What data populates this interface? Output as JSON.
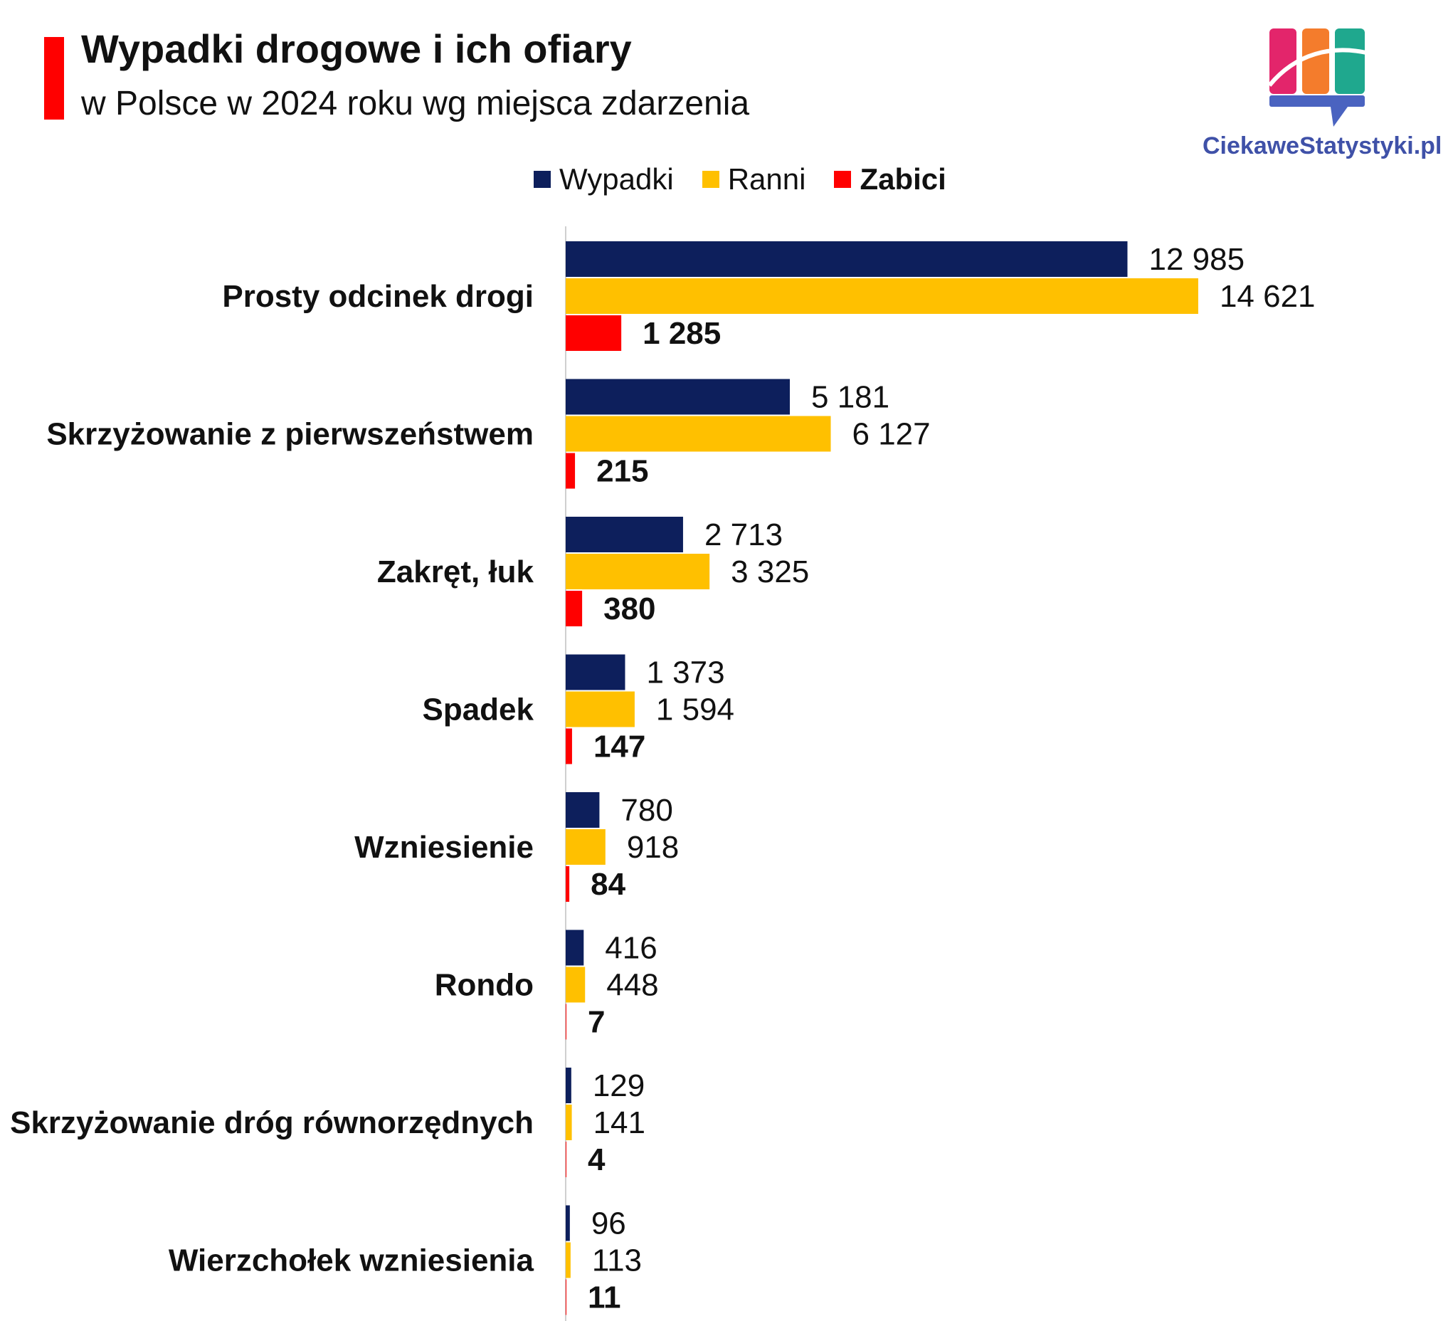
{
  "header": {
    "title": "Wypadki drogowe i ich ofiary",
    "subtitle": "w Polsce w 2024 roku wg miejsca zdarzenia",
    "accent_color": "#ff0000"
  },
  "branding": {
    "site": "CiekaweStatystyki.pl",
    "logo_icon": "bar-chart-speech-bubble-logo"
  },
  "chart_data": {
    "type": "bar",
    "orientation": "horizontal",
    "title": "Wypadki drogowe i ich ofiary",
    "subtitle": "w Polsce w 2024 roku wg miejsca zdarzenia",
    "categories": [
      "Prosty odcinek drogi",
      "Skrzyżowanie z pierwszeństwem",
      "Zakręt, łuk",
      "Spadek",
      "Wzniesienie",
      "Rondo",
      "Skrzyżowanie dróg równorzędnych",
      "Wierzchołek wzniesienia"
    ],
    "series": [
      {
        "name": "Wypadki",
        "color": "#0d1f5c",
        "values": [
          12985,
          5181,
          2713,
          1373,
          780,
          416,
          129,
          96
        ],
        "labels": [
          "12 985",
          "5 181",
          "2 713",
          "1 373",
          "780",
          "416",
          "129",
          "96"
        ]
      },
      {
        "name": "Ranni",
        "color": "#ffc000",
        "values": [
          14621,
          6127,
          3325,
          1594,
          918,
          448,
          141,
          113
        ],
        "labels": [
          "14 621",
          "6 127",
          "3 325",
          "1 594",
          "918",
          "448",
          "141",
          "113"
        ]
      },
      {
        "name": "Zabici",
        "color": "#ff0000",
        "bold": true,
        "values": [
          1285,
          215,
          380,
          147,
          84,
          7,
          4,
          11
        ],
        "labels": [
          "1 285",
          "215",
          "380",
          "147",
          "84",
          "7",
          "4",
          "11"
        ]
      }
    ],
    "xlim": [
      0,
      14621
    ],
    "grid": false,
    "legend": "top-center"
  }
}
